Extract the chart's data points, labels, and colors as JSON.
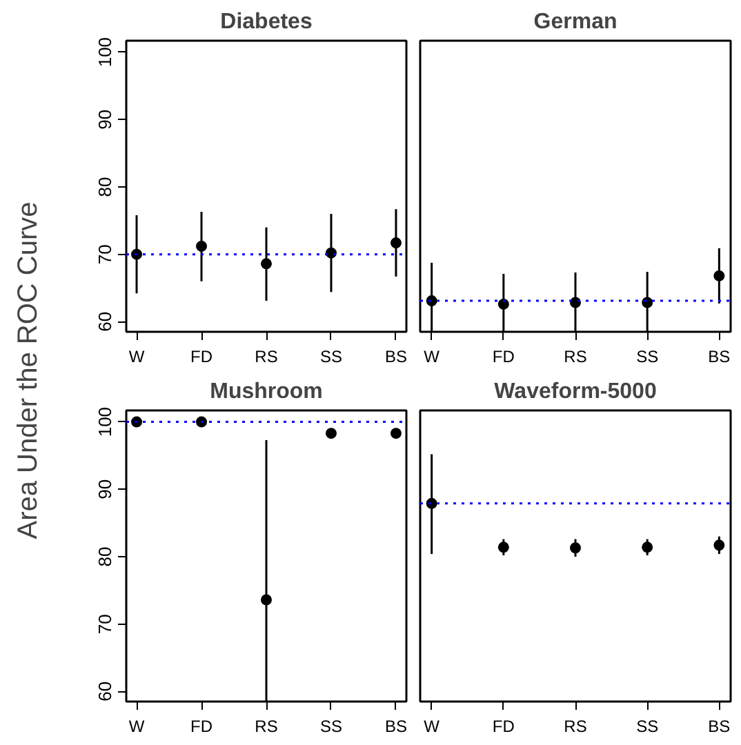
{
  "chart_data": [
    {
      "type": "scatter",
      "title": "Diabetes",
      "ylabel": "Area Under the ROC Curve",
      "categories": [
        "W",
        "FD",
        "RS",
        "SS",
        "BS"
      ],
      "marker": "circle",
      "ylim": [
        58.5,
        101.7
      ],
      "yticks": [
        60,
        70,
        80,
        90,
        100
      ],
      "series": [
        {
          "color": "#000000",
          "values": [
            70.0,
            71.2,
            68.6,
            70.2,
            71.7
          ],
          "errors": [
            [
              64.2,
              75.8
            ],
            [
              66.0,
              76.3
            ],
            [
              63.1,
              74.0
            ],
            [
              64.4,
              76.0
            ],
            [
              66.7,
              76.7
            ]
          ]
        }
      ],
      "ref_lines": [
        {
          "axis": "y",
          "value": 70.0,
          "color": "#0000ff",
          "line_style": "dotted"
        }
      ]
    },
    {
      "type": "scatter",
      "title": "German",
      "categories": [
        "W",
        "FD",
        "RS",
        "SS",
        "BS"
      ],
      "marker": "circle",
      "ylim": [
        58.5,
        101.7
      ],
      "yticks": [
        60,
        70,
        80,
        90,
        100
      ],
      "tick_labels": "x",
      "series": [
        {
          "color": "#000000",
          "values": [
            63.1,
            62.6,
            62.85,
            62.85,
            66.8
          ],
          "errors": [
            [
              58.5,
              68.75
            ],
            [
              58.5,
              67.1
            ],
            [
              58.5,
              67.3
            ],
            [
              58.5,
              67.4
            ],
            [
              62.7,
              70.9
            ]
          ]
        }
      ],
      "ref_lines": [
        {
          "axis": "y",
          "value": 63.1,
          "color": "#0000ff",
          "line_style": "dotted"
        }
      ]
    },
    {
      "type": "scatter",
      "title": "Mushroom",
      "categories": [
        "W",
        "FD",
        "RS",
        "SS",
        "BS"
      ],
      "marker": "circle",
      "ylim": [
        58.5,
        101.7
      ],
      "yticks": [
        60,
        70,
        80,
        90,
        100
      ],
      "series": [
        {
          "color": "#000000",
          "values": [
            100.0,
            100.0,
            73.6,
            98.3,
            98.3
          ],
          "errors": [
            null,
            null,
            [
              58.5,
              97.3
            ],
            0.6,
            0.6
          ]
        }
      ],
      "ref_lines": [
        {
          "axis": "y",
          "value": 100.0,
          "color": "#0000ff",
          "line_style": "dotted"
        }
      ]
    },
    {
      "type": "scatter",
      "title": "Waveform-5000",
      "categories": [
        "W",
        "FD",
        "RS",
        "SS",
        "BS"
      ],
      "marker": "circle",
      "ylim": [
        58.5,
        101.7
      ],
      "yticks": [
        60,
        70,
        80,
        90,
        100
      ],
      "tick_labels": "x",
      "series": [
        {
          "color": "#000000",
          "values": [
            87.9,
            81.4,
            81.3,
            81.4,
            81.7
          ],
          "errors": [
            [
              80.4,
              95.2
            ],
            1.2,
            1.3,
            1.2,
            1.3
          ]
        }
      ],
      "ref_lines": [
        {
          "axis": "y",
          "value": 87.9,
          "color": "#0000ff",
          "line_style": "dotted"
        }
      ]
    }
  ]
}
